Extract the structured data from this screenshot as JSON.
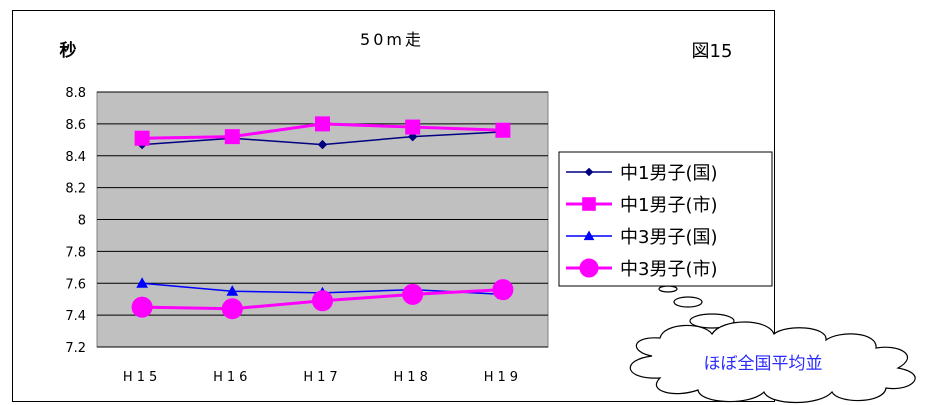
{
  "chart_data": {
    "type": "line",
    "title": "50m走",
    "ylabel": "秒",
    "figure_label": "図15",
    "callout": "ほぼ全国平均並",
    "categories": [
      "H15",
      "H16",
      "H17",
      "H18",
      "H19"
    ],
    "ylim": [
      7.2,
      8.8
    ],
    "yticks": [
      "8.8",
      "8.6",
      "8.4",
      "8.2",
      "8",
      "7.8",
      "7.6",
      "7.4",
      "7.2"
    ],
    "grid": true,
    "legend_position": "right",
    "series": [
      {
        "name": "中1男子(国)",
        "values": [
          8.47,
          8.51,
          8.47,
          8.52,
          8.55
        ],
        "color": "#000080",
        "marker": "diamond"
      },
      {
        "name": "中1男子(市)",
        "values": [
          8.51,
          8.52,
          8.6,
          8.58,
          8.56
        ],
        "color": "#ff00ff",
        "marker": "square"
      },
      {
        "name": "中3男子(国)",
        "values": [
          7.6,
          7.55,
          7.54,
          7.56,
          7.53
        ],
        "color": "#0000ff",
        "marker": "triangle"
      },
      {
        "name": "中3男子(市)",
        "values": [
          7.45,
          7.44,
          7.49,
          7.53,
          7.56
        ],
        "color": "#ff00ff",
        "marker": "circle"
      }
    ],
    "plot_background": "#c0c0c0"
  }
}
